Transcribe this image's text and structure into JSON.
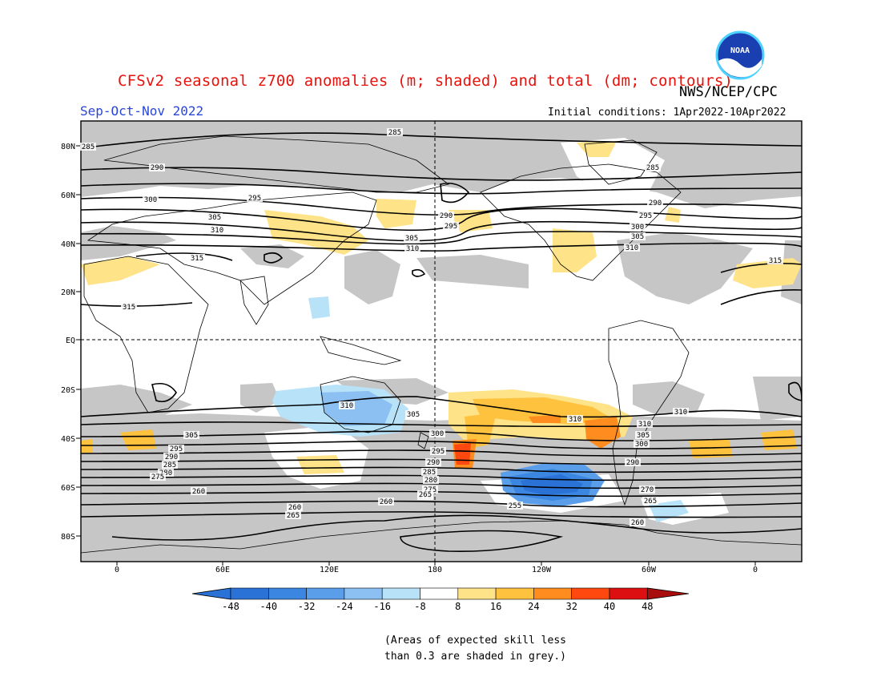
{
  "header": {
    "title": "CFSv2 seasonal z700 anomalies (m; shaded) and total (dm; contours)",
    "agency": "NWS/NCEP/CPC",
    "season": "Sep-Oct-Nov 2022",
    "initial_conditions": "Initial conditions: 1Apr2022-10Apr2022",
    "logo_text": "NOAA"
  },
  "map": {
    "lat_ticks": [
      "80N",
      "60N",
      "40N",
      "20N",
      "EQ",
      "20S",
      "40S",
      "60S",
      "80S"
    ],
    "lon_ticks": [
      "0",
      "60E",
      "120E",
      "180",
      "120W",
      "60W",
      "0"
    ],
    "contour_labels": [
      "285",
      "285",
      "285",
      "290",
      "290",
      "290",
      "295",
      "295",
      "295",
      "300",
      "300",
      "305",
      "305",
      "305",
      "310",
      "310",
      "310",
      "315",
      "315",
      "315",
      "310",
      "305",
      "310",
      "310",
      "300",
      "305",
      "295",
      "300",
      "290",
      "295",
      "285",
      "290",
      "280",
      "285",
      "275",
      "280",
      "270",
      "275",
      "265",
      "270",
      "260",
      "265",
      "260",
      "265",
      "255",
      "260",
      "260",
      "305",
      "310",
      "290"
    ],
    "colors": {
      "grey": "#c6c6c6",
      "land_outline": "#000000"
    }
  },
  "legend": {
    "values": [
      "-48",
      "-40",
      "-32",
      "-24",
      "-16",
      "-8",
      "8",
      "16",
      "24",
      "32",
      "40",
      "48"
    ],
    "colors": [
      "#2a72d6",
      "#3a86e0",
      "#5a9eea",
      "#8cc0f2",
      "#b8e2f8",
      "#ffffff",
      "#ffe388",
      "#ffc23e",
      "#ff8c1e",
      "#ff4810",
      "#dc1010",
      "#a80c0c"
    ]
  },
  "footnote": {
    "line1": "(Areas of expected skill less",
    "line2": "than 0.3 are shaded in grey.)"
  }
}
